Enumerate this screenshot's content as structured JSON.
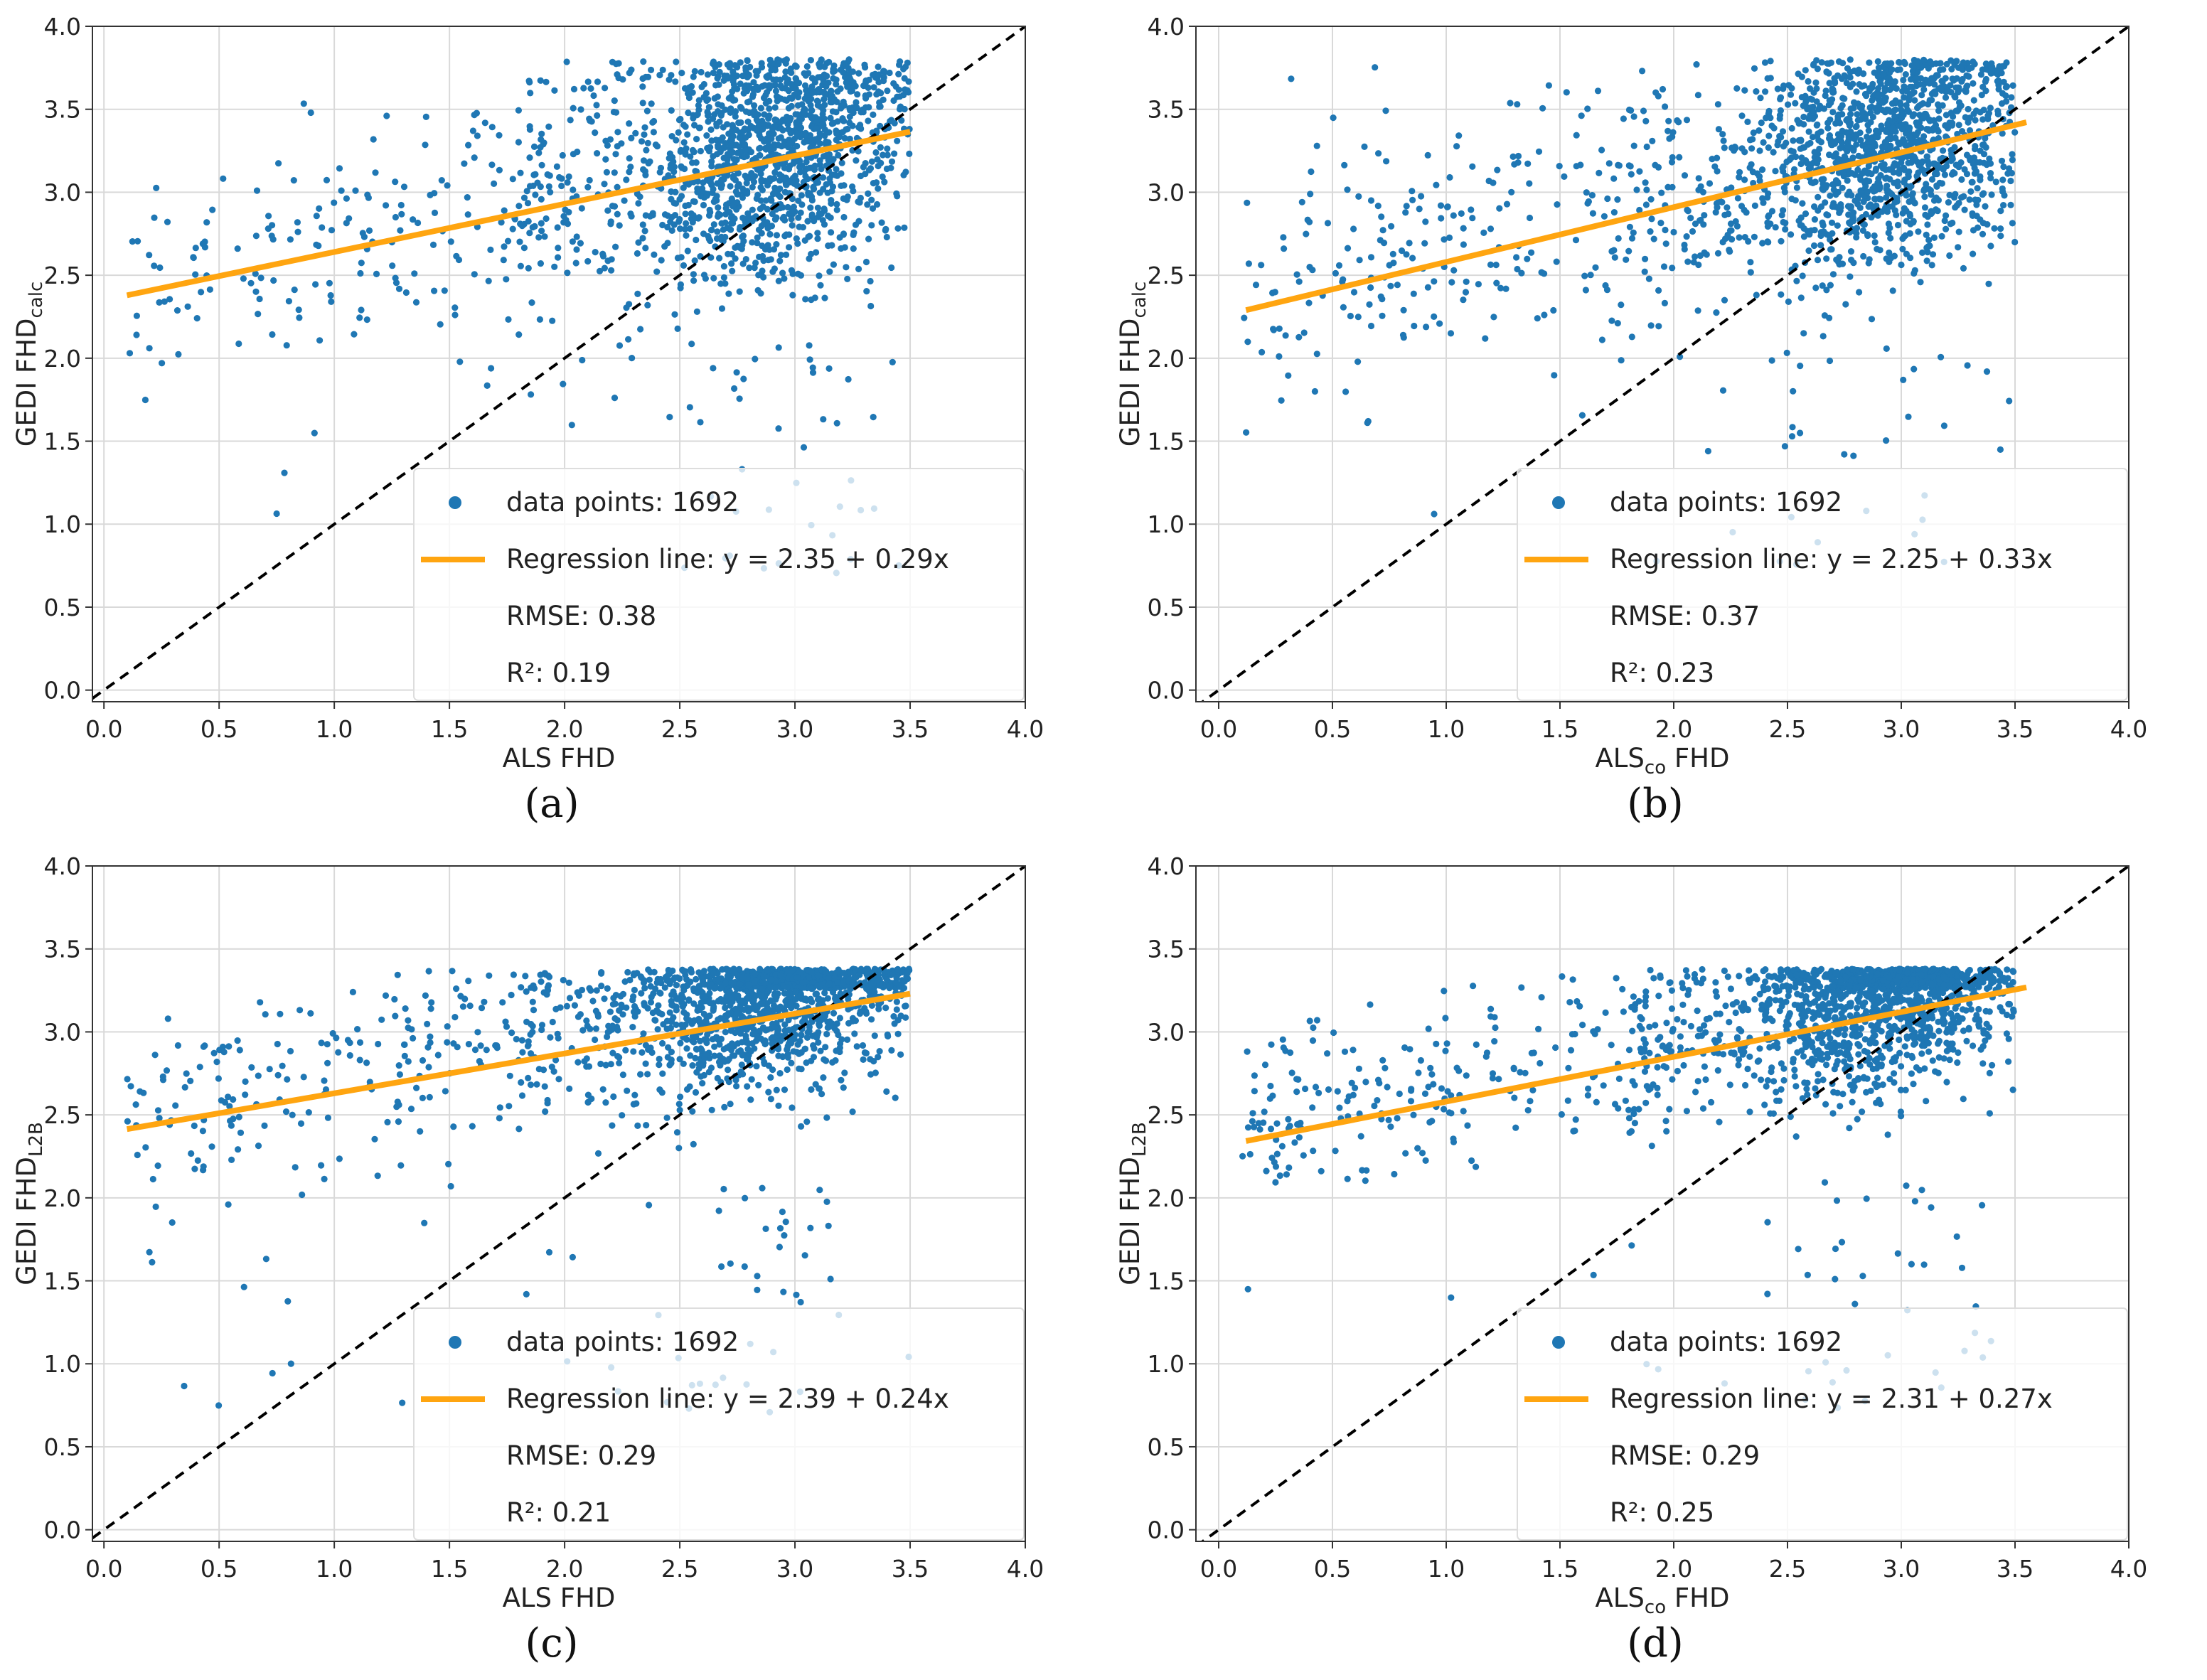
{
  "figure": {
    "panels": [
      "(a)",
      "(b)",
      "(c)",
      "(d)"
    ]
  },
  "colors": {
    "points": "#1f77b4",
    "regression": "#ffa510",
    "identity": "#000000",
    "grid": "#d9d9d9"
  },
  "chart_data": [
    {
      "type": "scatter",
      "panel_label": "(a)",
      "xlabel": "ALS FHD",
      "ylabel": "GEDI FHD",
      "ylabel_sub": "calc",
      "xlim": [
        -0.05,
        4.0
      ],
      "ylim": [
        -0.07,
        4.0
      ],
      "xticks": [
        "0.0",
        "0.5",
        "1.0",
        "1.5",
        "2.0",
        "2.5",
        "3.0",
        "3.5",
        "4.0"
      ],
      "yticks": [
        "0.0",
        "0.5",
        "1.0",
        "1.5",
        "2.0",
        "2.5",
        "3.0",
        "3.5",
        "4.0"
      ],
      "n_points": 1692,
      "regression": {
        "intercept": 2.35,
        "slope": 0.29,
        "x_range": [
          0.1,
          3.5
        ]
      },
      "identity_line": true,
      "legend": {
        "points": "data points: 1692",
        "line": "Regression line: y = 2.35 + 0.29x",
        "rmse": "RMSE: 0.38",
        "r2": "R²: 0.19"
      }
    },
    {
      "type": "scatter",
      "panel_label": "(b)",
      "xlabel": "ALS",
      "xlabel_sub": "co",
      "xlabel_suffix": " FHD",
      "ylabel": "GEDI FHD",
      "ylabel_sub": "calc",
      "xlim": [
        -0.1,
        4.0
      ],
      "ylim": [
        -0.07,
        4.0
      ],
      "xticks": [
        "0.0",
        "0.5",
        "1.0",
        "1.5",
        "2.0",
        "2.5",
        "3.0",
        "3.5",
        "4.0"
      ],
      "yticks": [
        "0.0",
        "0.5",
        "1.0",
        "1.5",
        "2.0",
        "2.5",
        "3.0",
        "3.5",
        "4.0"
      ],
      "n_points": 1692,
      "regression": {
        "intercept": 2.25,
        "slope": 0.33,
        "x_range": [
          0.12,
          3.55
        ]
      },
      "identity_line": true,
      "legend": {
        "points": "data points: 1692",
        "line": "Regression line: y = 2.25 + 0.33x",
        "rmse": "RMSE: 0.37",
        "r2": "R²: 0.23"
      }
    },
    {
      "type": "scatter",
      "panel_label": "(c)",
      "xlabel": "ALS FHD",
      "ylabel": "GEDI FHD",
      "ylabel_sub": "L2B",
      "xlim": [
        -0.05,
        4.0
      ],
      "ylim": [
        -0.07,
        4.0
      ],
      "xticks": [
        "0.0",
        "0.5",
        "1.0",
        "1.5",
        "2.0",
        "2.5",
        "3.0",
        "3.5",
        "4.0"
      ],
      "yticks": [
        "0.0",
        "0.5",
        "1.0",
        "1.5",
        "2.0",
        "2.5",
        "3.0",
        "3.5",
        "4.0"
      ],
      "n_points": 1692,
      "regression": {
        "intercept": 2.39,
        "slope": 0.24,
        "x_range": [
          0.1,
          3.5
        ]
      },
      "identity_line": true,
      "legend": {
        "points": "data points: 1692",
        "line": "Regression line: y = 2.39 + 0.24x",
        "rmse": "RMSE: 0.29",
        "r2": "R²: 0.21"
      }
    },
    {
      "type": "scatter",
      "panel_label": "(d)",
      "xlabel": "ALS",
      "xlabel_sub": "co",
      "xlabel_suffix": " FHD",
      "ylabel": "GEDI FHD",
      "ylabel_sub": "L2B",
      "xlim": [
        -0.1,
        4.0
      ],
      "ylim": [
        -0.07,
        4.0
      ],
      "xticks": [
        "0.0",
        "0.5",
        "1.0",
        "1.5",
        "2.0",
        "2.5",
        "3.0",
        "3.5",
        "4.0"
      ],
      "yticks": [
        "0.0",
        "0.5",
        "1.0",
        "1.5",
        "2.0",
        "2.5",
        "3.0",
        "3.5",
        "4.0"
      ],
      "n_points": 1692,
      "regression": {
        "intercept": 2.31,
        "slope": 0.27,
        "x_range": [
          0.12,
          3.55
        ]
      },
      "identity_line": true,
      "legend": {
        "points": "data points: 1692",
        "line": "Regression line: y = 2.31 + 0.27x",
        "rmse": "RMSE: 0.29",
        "r2": "R²: 0.25"
      }
    }
  ]
}
